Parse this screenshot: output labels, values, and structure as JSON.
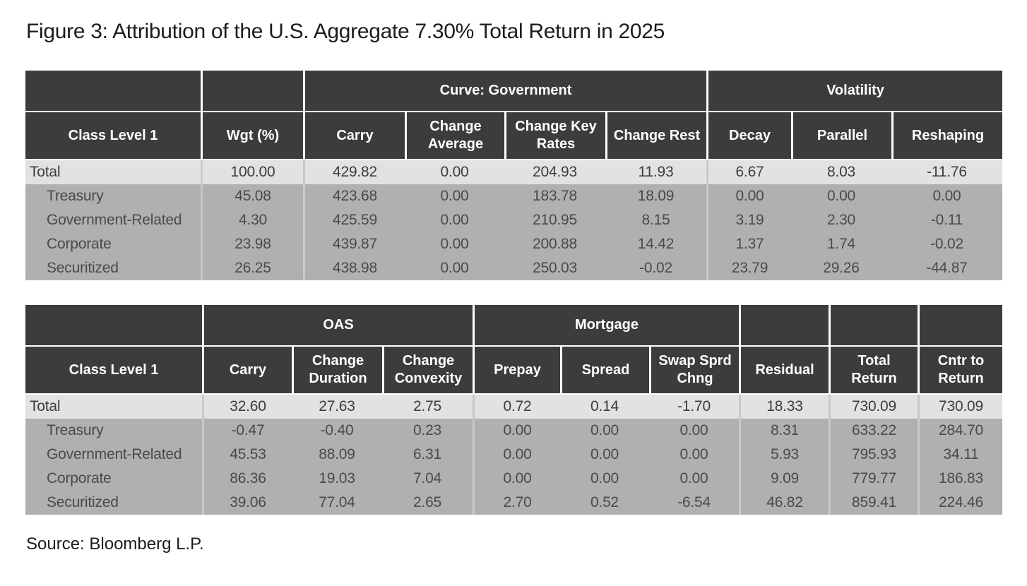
{
  "title": "Figure 3: Attribution of the U.S. Aggregate 7.30% Total Return in 2025",
  "source": "Source: Bloomberg L.P.",
  "colors": {
    "header_bg": "#3c3c3c",
    "header_text": "#ffffff",
    "total_row_bg": "#e2e2e2",
    "row_bg": "#b0b0b0",
    "body_separator": "#c9c9c9"
  },
  "table1": {
    "group_headers": [
      {
        "label": "",
        "span": 1
      },
      {
        "label": "",
        "span": 1
      },
      {
        "label": "Curve: Government",
        "span": 4
      },
      {
        "label": "Volatility",
        "span": 3
      }
    ],
    "column_headers": [
      "Class Level 1",
      "Wgt (%)",
      "Carry",
      "Change\nAverage",
      "Change Key\nRates",
      "Change Rest",
      "Decay",
      "Parallel",
      "Reshaping"
    ],
    "rows": [
      {
        "label": "Total",
        "total": true,
        "values": [
          "100.00",
          "429.82",
          "0.00",
          "204.93",
          "11.93",
          "6.67",
          "8.03",
          "-11.76"
        ]
      },
      {
        "label": "Treasury",
        "total": false,
        "values": [
          "45.08",
          "423.68",
          "0.00",
          "183.78",
          "18.09",
          "0.00",
          "0.00",
          "0.00"
        ]
      },
      {
        "label": "Government-Related",
        "total": false,
        "values": [
          "4.30",
          "425.59",
          "0.00",
          "210.95",
          "8.15",
          "3.19",
          "2.30",
          "-0.11"
        ]
      },
      {
        "label": "Corporate",
        "total": false,
        "values": [
          "23.98",
          "439.87",
          "0.00",
          "200.88",
          "14.42",
          "1.37",
          "1.74",
          "-0.02"
        ]
      },
      {
        "label": "Securitized",
        "total": false,
        "values": [
          "26.25",
          "438.98",
          "0.00",
          "250.03",
          "-0.02",
          "23.79",
          "29.26",
          "-44.87"
        ]
      }
    ]
  },
  "table2": {
    "group_headers": [
      {
        "label": "",
        "span": 1
      },
      {
        "label": "OAS",
        "span": 3
      },
      {
        "label": "Mortgage",
        "span": 3
      },
      {
        "label": "",
        "span": 1
      },
      {
        "label": "",
        "span": 1
      },
      {
        "label": "",
        "span": 1
      }
    ],
    "column_headers": [
      "Class Level 1",
      "Carry",
      "Change\nDuration",
      "Change\nConvexity",
      "Prepay",
      "Spread",
      "Swap Sprd\nChng",
      "Residual",
      "Total\nReturn",
      "Cntr to\nReturn"
    ],
    "rows": [
      {
        "label": "Total",
        "total": true,
        "values": [
          "32.60",
          "27.63",
          "2.75",
          "0.72",
          "0.14",
          "-1.70",
          "18.33",
          "730.09",
          "730.09"
        ]
      },
      {
        "label": "Treasury",
        "total": false,
        "values": [
          "-0.47",
          "-0.40",
          "0.23",
          "0.00",
          "0.00",
          "0.00",
          "8.31",
          "633.22",
          "284.70"
        ]
      },
      {
        "label": "Government-Related",
        "total": false,
        "values": [
          "45.53",
          "88.09",
          "6.31",
          "0.00",
          "0.00",
          "0.00",
          "5.93",
          "795.93",
          "34.11"
        ]
      },
      {
        "label": "Corporate",
        "total": false,
        "values": [
          "86.36",
          "19.03",
          "7.04",
          "0.00",
          "0.00",
          "0.00",
          "9.09",
          "779.77",
          "186.83"
        ]
      },
      {
        "label": "Securitized",
        "total": false,
        "values": [
          "39.06",
          "77.04",
          "2.65",
          "2.70",
          "0.52",
          "-6.54",
          "46.82",
          "859.41",
          "224.46"
        ]
      }
    ]
  }
}
